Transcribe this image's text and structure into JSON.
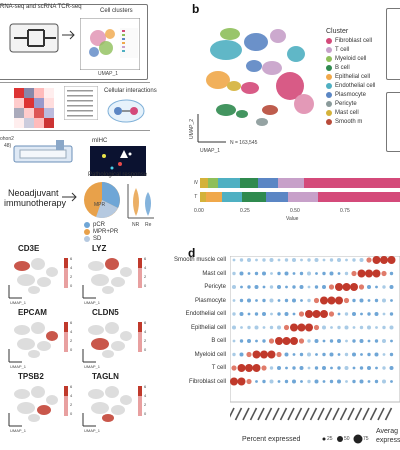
{
  "panel_a": {
    "top_partial_label": "RNA-seq and scRNA TCR-seq",
    "cell_clusters_label": "Cell clusters",
    "cell_interactions_label": "Cellular interactions",
    "mihc_label": "mIHC",
    "multiplex_label_1": "ohon2",
    "multiplex_label_2": "48)",
    "umap_axis": "UMAP_1",
    "umap_axis_2": "UMAP_2",
    "neoadjuvant_line1": "Neoadjuvant",
    "neoadjuvant_line2": "immunotherapy",
    "pathological_response": "Pathological response",
    "pie_center": "MPR",
    "pie_legend": [
      "pCR",
      "MPR+PR",
      "SD"
    ],
    "violin_groups": [
      "NR",
      "Re"
    ]
  },
  "panel_b": {
    "label": "b",
    "n_text": "N = 163,545",
    "axis_x": "UMAP_1",
    "axis_y": "UMAP_2",
    "legend_title": "Cluster",
    "legend": [
      {
        "name": "Fibroblast cell",
        "color": "#d44a7a"
      },
      {
        "name": "T cell",
        "color": "#c7a0c9"
      },
      {
        "name": "Myeloid cell",
        "color": "#8fbf5a"
      },
      {
        "name": "B cell",
        "color": "#2f8a4f"
      },
      {
        "name": "Epithelial cell",
        "color": "#f0a84a"
      },
      {
        "name": "Endothelial cell",
        "color": "#4fb0c2"
      },
      {
        "name": "Plasmocyte",
        "color": "#5b86c4"
      },
      {
        "name": "Pericyte",
        "color": "#8a9a9a"
      },
      {
        "name": "Mast cell",
        "color": "#d4b23a"
      },
      {
        "name": "Smooth m",
        "color": "#b84b3a"
      }
    ],
    "bar_rows": [
      "N",
      "T"
    ],
    "bar_ticks": [
      "0.00",
      "0.25",
      "0.50",
      "0.75"
    ],
    "bar_xlabel": "Value"
  },
  "panel_c": {
    "genes": [
      "CD3E",
      "LYZ",
      "EPCAM",
      "CLDN5",
      "TPSB2",
      "TAGLN"
    ],
    "umap_x": "UMAP_1",
    "umap_y": "UMAP_2",
    "scale_ticks": [
      "6",
      "4",
      "2",
      "0"
    ]
  },
  "panel_d": {
    "label": "d",
    "rows": [
      "Smooth muscle cell",
      "Mast cell",
      "Pericyte",
      "Plasmocyte",
      "Endothelial cell",
      "Epithelial cell",
      "B cell",
      "Myeloid cell",
      "T cell",
      "Fibroblast cell"
    ],
    "percent_label": "Percent expressed",
    "size_ticks": [
      "25",
      "50",
      "75"
    ],
    "average_label_1": "Averag",
    "average_label_2": "expressi"
  },
  "chart_data": {
    "type": "scatter",
    "title": "",
    "xlabel": "",
    "ylabel": "",
    "categories": [
      "Smooth muscle cell",
      "Mast cell",
      "Pericyte",
      "Plasmocyte",
      "Endothelial cell",
      "Epithelial cell",
      "B cell",
      "Myeloid cell",
      "T cell",
      "Fibroblast cell"
    ]
  }
}
